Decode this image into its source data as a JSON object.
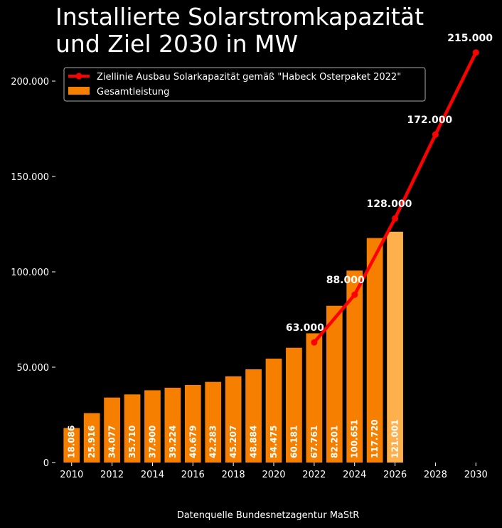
{
  "title_lines": [
    "Installierte Solarstromkapazität",
    "und Ziel 2030 in MW"
  ],
  "source": "Datenquelle Bundesnetzagentur MaStR",
  "legend": {
    "line_label": "Ziellinie Ausbau Solarkapazität gemäß \"Habeck Osterpaket 2022\"",
    "bar_label": "Gesamtleistung"
  },
  "colors": {
    "bar": "#f77f00",
    "bar_highlight": "#fdb04b",
    "line": "#ff0000",
    "background": "#000000",
    "text": "#ffffff"
  },
  "chart_data": {
    "type": "bar",
    "xlim": [
      2009.2,
      2030.8
    ],
    "ylim": [
      0,
      225000
    ],
    "x_ticks": [
      2010,
      2012,
      2014,
      2016,
      2018,
      2020,
      2022,
      2024,
      2026,
      2028,
      2030
    ],
    "y_ticks": [
      0,
      50000,
      100000,
      150000,
      200000
    ],
    "y_tick_labels": [
      "0",
      "50.000",
      "100.000",
      "150.000",
      "200.000"
    ],
    "grid": false,
    "legend_position": "top-left",
    "bars": {
      "name": "Gesamtleistung",
      "x": [
        2010,
        2011,
        2012,
        2013,
        2014,
        2015,
        2016,
        2017,
        2018,
        2019,
        2020,
        2021,
        2022,
        2023,
        2024,
        2025,
        2026
      ],
      "values": [
        18086,
        25916,
        34077,
        35710,
        37900,
        39224,
        40679,
        42283,
        45207,
        48884,
        54475,
        60181,
        67761,
        82201,
        100651,
        117720,
        121001
      ],
      "labels": [
        "18.086",
        "25.916",
        "34.077",
        "35.710",
        "37.900",
        "39.224",
        "40.679",
        "42.283",
        "45.207",
        "48.884",
        "54.475",
        "60.181",
        "67.761",
        "82.201",
        "100.651",
        "117.720",
        "121.001"
      ],
      "labeled": [
        true,
        true,
        true,
        true,
        true,
        true,
        true,
        true,
        true,
        true,
        true,
        true,
        true,
        true,
        true,
        true,
        true
      ],
      "highlight_index": 16
    },
    "line": {
      "name": "Ziellinie Ausbau Solarkapazität gemäß \"Habeck Osterpaket 2022\"",
      "x": [
        2022,
        2024,
        2026,
        2028,
        2030
      ],
      "values": [
        63000,
        88000,
        128000,
        172000,
        215000
      ],
      "labels": [
        "63.000",
        "88.000",
        "128.000",
        "172.000",
        "215.000"
      ]
    }
  }
}
